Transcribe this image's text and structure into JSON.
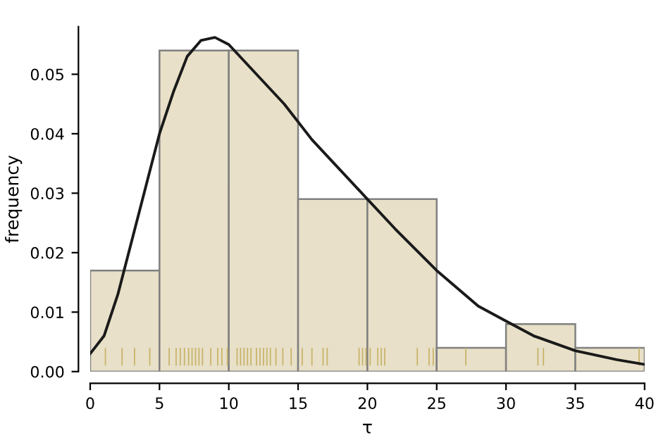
{
  "chart_data": {
    "type": "histogram",
    "xlabel": "τ",
    "ylabel": "frequency",
    "bins": [
      0,
      5,
      10,
      15,
      20,
      25,
      30,
      35,
      40
    ],
    "values": [
      0.017,
      0.054,
      0.054,
      0.029,
      0.029,
      0.004,
      0.008,
      0.004
    ],
    "color": "#e8e0c8",
    "series": [
      {
        "type": "line",
        "color": "#1a1a1a",
        "line_style": "solid",
        "marker": "none",
        "x": [
          0,
          1,
          2,
          3,
          4,
          5,
          6,
          7,
          8,
          9,
          10,
          12,
          14,
          16,
          18,
          20,
          22,
          25,
          28,
          30,
          32,
          35,
          38,
          40
        ],
        "values": [
          0.003,
          0.006,
          0.013,
          0.022,
          0.031,
          0.04,
          0.047,
          0.053,
          0.0557,
          0.0562,
          0.055,
          0.05,
          0.045,
          0.039,
          0.034,
          0.029,
          0.024,
          0.017,
          0.011,
          0.0085,
          0.006,
          0.0035,
          0.002,
          0.0012
        ]
      },
      {
        "type": "bar",
        "color": "#c8b46a",
        "base": [
          0.001,
          0.001,
          0.001,
          0.001,
          0.001,
          0.001,
          0.001,
          0.001,
          0.001,
          0.001,
          0.001,
          0.001,
          0.001,
          0.001,
          0.001,
          0.001,
          0.001,
          0.001,
          0.001,
          0.001,
          0.001,
          0.001,
          0.001,
          0.001,
          0.001,
          0.001,
          0.001,
          0.001,
          0.001,
          0.001,
          0.001,
          0.001,
          0.001,
          0.001,
          0.001,
          0.001,
          0.001,
          0.001,
          0.001,
          0.001,
          0.001,
          0.001,
          0.001,
          0.001,
          0.001,
          0.001,
          0.001,
          0.001
        ],
        "x": [
          1.1,
          2.3,
          3.2,
          4.3,
          5.7,
          6.2,
          6.5,
          6.8,
          7.1,
          7.35,
          7.6,
          7.85,
          8.1,
          8.7,
          9.2,
          9.5,
          9.9,
          10.6,
          10.85,
          11.1,
          11.35,
          11.6,
          12.0,
          12.25,
          12.5,
          12.75,
          13.0,
          13.4,
          13.9,
          14.5,
          15.3,
          16.0,
          16.8,
          17.1,
          19.4,
          19.65,
          19.9,
          20.2,
          20.75,
          21.0,
          21.25,
          23.6,
          24.45,
          24.75,
          27.1,
          32.3,
          32.7,
          39.6
        ],
        "values": [
          0.003,
          0.003,
          0.003,
          0.003,
          0.003,
          0.003,
          0.003,
          0.003,
          0.003,
          0.003,
          0.003,
          0.003,
          0.003,
          0.003,
          0.003,
          0.003,
          0.003,
          0.003,
          0.003,
          0.003,
          0.003,
          0.003,
          0.003,
          0.003,
          0.003,
          0.003,
          0.003,
          0.003,
          0.003,
          0.003,
          0.003,
          0.003,
          0.003,
          0.003,
          0.003,
          0.003,
          0.003,
          0.003,
          0.003,
          0.003,
          0.003,
          0.003,
          0.003,
          0.003,
          0.003,
          0.003,
          0.003,
          0.003
        ]
      }
    ],
    "xlim": [
      0,
      40
    ],
    "ylim": [
      0,
      0.058
    ],
    "xticks": [
      0,
      5,
      10,
      15,
      20,
      25,
      30,
      35,
      40
    ],
    "yticks": [
      {
        "value": 0,
        "label": "0.00"
      },
      0.01,
      0.02,
      0.03,
      0.04,
      0.05
    ],
    "grid": false,
    "legend": false
  }
}
